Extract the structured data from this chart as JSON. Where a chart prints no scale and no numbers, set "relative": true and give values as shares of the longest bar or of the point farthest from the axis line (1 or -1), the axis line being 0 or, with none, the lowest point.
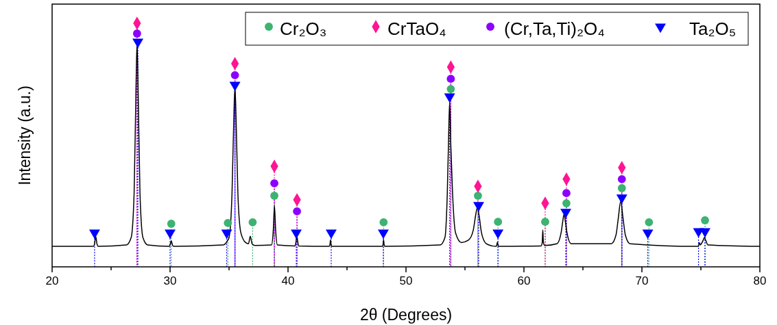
{
  "chart_data": {
    "type": "line",
    "xlabel": "2θ (Degrees)",
    "ylabel": "Intensity (a.u.)",
    "relative": true,
    "xlim": [
      20,
      80
    ],
    "xticks": [
      20,
      {
        "value": 25,
        "label": null
      },
      30,
      {
        "value": 35,
        "label": null
      },
      40,
      {
        "value": 45,
        "label": null
      },
      50,
      {
        "value": 55,
        "label": null
      },
      60,
      {
        "value": 65,
        "label": null
      },
      70,
      {
        "value": 75,
        "label": null
      },
      80
    ],
    "legend": "top right",
    "series": [
      {
        "color": "#000000",
        "line_style": "solid",
        "marker": "none",
        "x": [
          20,
          23.5,
          23.6,
          23.7,
          23.8,
          23.9,
          26.3,
          26.7,
          26.95,
          27.1,
          27.2,
          27.3,
          27.45,
          27.7,
          28.1,
          29.9,
          30.0,
          30.1,
          30.2,
          30.3,
          34.5,
          34.9,
          35.0,
          35.25,
          35.4,
          35.5,
          35.6,
          35.75,
          36.0,
          36.4,
          36.65,
          36.8,
          36.95,
          37.2,
          38.6,
          38.75,
          38.85,
          38.95,
          39.1,
          40.6,
          40.65,
          40.75,
          40.85,
          40.9,
          43.5,
          43.55,
          43.6,
          43.65,
          43.7,
          48.0,
          48.05,
          48.1,
          48.15,
          48.2,
          52.9,
          53.3,
          53.5,
          53.6,
          53.7,
          53.8,
          53.95,
          54.2,
          54.7,
          55.3,
          55.7,
          55.9,
          56.05,
          56.2,
          56.4,
          56.8,
          57.3,
          57.65,
          57.7,
          57.75,
          57.8,
          57.85,
          61.45,
          61.55,
          61.6,
          61.65,
          61.75,
          62.8,
          63.15,
          63.3,
          63.4,
          63.5,
          63.65,
          64.0,
          67.4,
          67.8,
          68.0,
          68.2,
          68.4,
          68.6,
          69.0,
          74.8,
          74.85,
          74.9,
          74.95,
          75.1,
          75.2,
          75.3,
          75.4,
          75.6,
          80
        ],
        "values": [
          0.084,
          0.084,
          0.095,
          0.124,
          0.095,
          0.084,
          0.09,
          0.12,
          0.3,
          0.7,
          0.921,
          0.7,
          0.3,
          0.12,
          0.09,
          0.084,
          0.09,
          0.107,
          0.09,
          0.084,
          0.09,
          0.11,
          0.12,
          0.3,
          0.6,
          0.742,
          0.6,
          0.3,
          0.14,
          0.1,
          0.095,
          0.126,
          0.095,
          0.088,
          0.09,
          0.15,
          0.25,
          0.15,
          0.09,
          0.086,
          0.095,
          0.124,
          0.095,
          0.086,
          0.084,
          0.09,
          0.11,
          0.09,
          0.084,
          0.084,
          0.09,
          0.11,
          0.09,
          0.084,
          0.09,
          0.12,
          0.3,
          0.5,
          0.677,
          0.5,
          0.3,
          0.14,
          0.1,
          0.11,
          0.15,
          0.21,
          0.244,
          0.21,
          0.14,
          0.095,
          0.086,
          0.084,
          0.09,
          0.101,
          0.09,
          0.084,
          0.086,
          0.1,
          0.152,
          0.1,
          0.088,
          0.095,
          0.14,
          0.19,
          0.216,
          0.19,
          0.14,
          0.095,
          0.095,
          0.13,
          0.2,
          0.27,
          0.2,
          0.13,
          0.095,
          0.084,
          0.098,
          0.098,
          0.09,
          0.1,
          0.11,
          0.121,
          0.11,
          0.09,
          0.084
        ]
      },
      {
        "type": "lollipop",
        "name": "Cr₂O₃",
        "color": "#3cb371",
        "marker": "circle",
        "line_style": "dotted",
        "x": [
          30.1,
          34.9,
          37.0,
          38.84,
          48.1,
          53.8,
          56.1,
          57.8,
          61.8,
          63.6,
          68.3,
          70.6,
          75.35
        ],
        "values": [
          0.177,
          0.18,
          0.183,
          0.292,
          0.183,
          0.73,
          0.292,
          0.185,
          0.185,
          0.261,
          0.323,
          0.183,
          0.191
        ]
      },
      {
        "type": "lollipop",
        "name": "CrTaO₄",
        "color": "#ff1493",
        "marker": "diamond",
        "line_style": "dotted",
        "x": [
          27.2,
          35.5,
          38.84,
          40.76,
          53.8,
          56.1,
          61.8,
          63.6,
          68.3
        ],
        "values": [
          1,
          0.834,
          0.413,
          0.275,
          0.82,
          0.331,
          0.261,
          0.36,
          0.407
        ]
      },
      {
        "type": "lollipop",
        "name": "(Cr,Ta,Ti)₂O₄",
        "color": "#8b00ff",
        "marker": "circle",
        "line_style": "dotted",
        "x": [
          27.2,
          35.5,
          38.84,
          40.76,
          53.8,
          63.6,
          68.3
        ],
        "values": [
          0.958,
          0.787,
          0.343,
          0.228,
          0.772,
          0.303,
          0.36
        ]
      },
      {
        "type": "lollipop",
        "name": "Ta₂O₅",
        "color": "#0000ff",
        "marker": "triangle",
        "line_style": "dotted",
        "x": [
          23.6,
          27.27,
          30.0,
          34.8,
          35.5,
          40.7,
          43.66,
          48.08,
          53.7,
          56.16,
          57.8,
          63.55,
          68.3,
          70.5,
          74.8,
          75.35
        ],
        "values": [
          0.14,
          0.924,
          0.14,
          0.14,
          0.747,
          0.14,
          0.14,
          0.14,
          0.699,
          0.253,
          0.14,
          0.225,
          0.284,
          0.14,
          0.146,
          0.146
        ]
      }
    ]
  }
}
